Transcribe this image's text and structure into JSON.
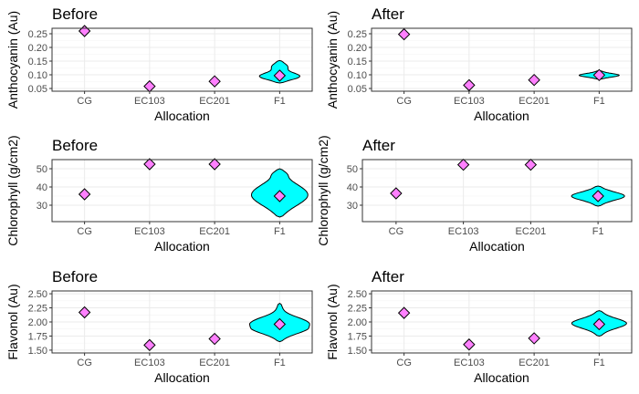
{
  "colors": {
    "violin_fill": "#00ffff",
    "point_fill": "#ff80ff"
  },
  "chart_data": [
    {
      "type": "violin",
      "title": "Before",
      "xlabel": "Allocation",
      "ylabel": "Anthocyanin (Au)",
      "categories": [
        "CG",
        "EC103",
        "EC201",
        "F1"
      ],
      "ylim": [
        0.04,
        0.27
      ],
      "yticks": [
        0.05,
        0.1,
        0.15,
        0.2,
        0.25
      ],
      "ytick_labels": [
        "0.05",
        "0.10",
        "0.15",
        "0.20",
        "0.25"
      ],
      "means": [
        0.26,
        0.058,
        0.076,
        0.097
      ],
      "violin": {
        "category": "F1",
        "range": [
          0.07,
          0.152
        ]
      }
    },
    {
      "type": "violin",
      "title": "After",
      "xlabel": "Allocation",
      "ylabel": "Anthocyanin (Au)",
      "categories": [
        "CG",
        "EC103",
        "EC201",
        "F1"
      ],
      "ylim": [
        0.04,
        0.27
      ],
      "yticks": [
        0.05,
        0.1,
        0.15,
        0.2,
        0.25
      ],
      "ytick_labels": [
        "0.05",
        "0.10",
        "0.15",
        "0.20",
        "0.25"
      ],
      "means": [
        0.248,
        0.062,
        0.081,
        0.099
      ],
      "violin": {
        "category": "F1",
        "range": [
          0.084,
          0.115
        ]
      }
    },
    {
      "type": "violin",
      "title": "Before",
      "xlabel": "Allocation",
      "ylabel": "Chlorophyll (g/cm2)",
      "categories": [
        "CG",
        "EC103",
        "EC201",
        "F1"
      ],
      "ylim": [
        21,
        55
      ],
      "yticks": [
        30,
        40,
        50
      ],
      "ytick_labels": [
        "30",
        "40",
        "50"
      ],
      "means": [
        36,
        52.5,
        52.5,
        35
      ],
      "violin": {
        "category": "F1",
        "range": [
          23.5,
          50
        ]
      }
    },
    {
      "type": "violin",
      "title": "After",
      "xlabel": "Allocation",
      "ylabel": "Chlorophyll (g/cm2)",
      "categories": [
        "CG",
        "EC103",
        "EC201",
        "F1"
      ],
      "ylim": [
        21,
        55
      ],
      "yticks": [
        30,
        40,
        50
      ],
      "ytick_labels": [
        "30",
        "40",
        "50"
      ],
      "means": [
        36.5,
        52.2,
        52.2,
        35
      ],
      "violin": {
        "category": "F1",
        "range": [
          29.5,
          40.5
        ]
      }
    },
    {
      "type": "violin",
      "title": "Before",
      "xlabel": "Allocation",
      "ylabel": "Flavonol (Au)",
      "categories": [
        "CG",
        "EC103",
        "EC201",
        "F1"
      ],
      "ylim": [
        1.45,
        2.55
      ],
      "yticks": [
        1.5,
        1.75,
        2.0,
        2.25,
        2.5
      ],
      "ytick_labels": [
        "1.50",
        "1.75",
        "2.00",
        "2.25",
        "2.50"
      ],
      "means": [
        2.17,
        1.59,
        1.7,
        1.96
      ],
      "violin": {
        "category": "F1",
        "range": [
          1.65,
          2.33
        ]
      }
    },
    {
      "type": "violin",
      "title": "After",
      "xlabel": "Allocation",
      "ylabel": "Flavonol (Au)",
      "categories": [
        "CG",
        "EC103",
        "EC201",
        "F1"
      ],
      "ylim": [
        1.45,
        2.55
      ],
      "yticks": [
        1.5,
        1.75,
        2.0,
        2.25,
        2.5
      ],
      "ytick_labels": [
        "1.50",
        "1.75",
        "2.00",
        "2.25",
        "2.50"
      ],
      "means": [
        2.16,
        1.6,
        1.71,
        1.96
      ],
      "violin": {
        "category": "F1",
        "range": [
          1.75,
          2.2
        ]
      }
    }
  ]
}
